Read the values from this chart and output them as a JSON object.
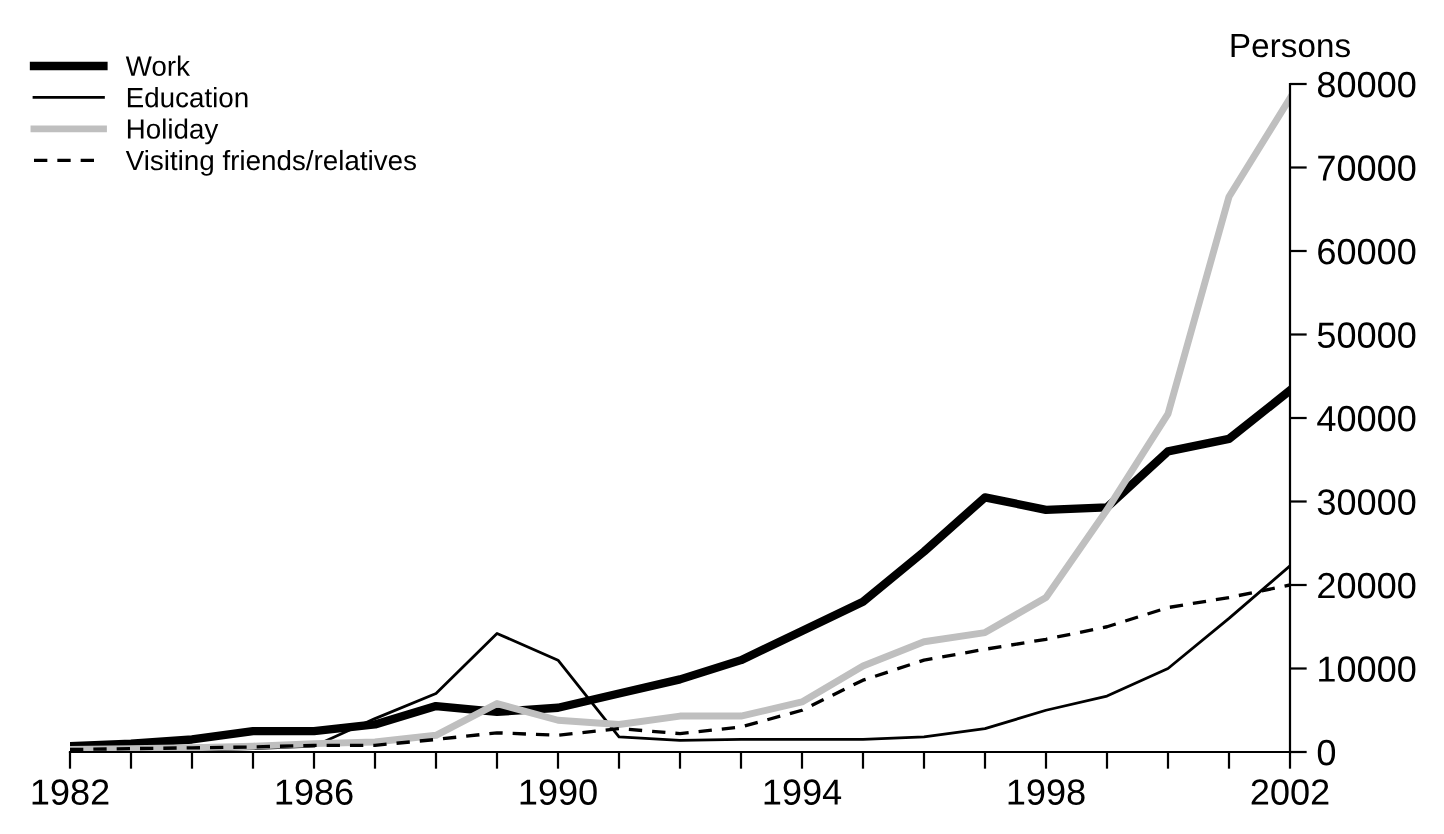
{
  "chart_data": {
    "type": "line",
    "ylabel": "Persons",
    "x": [
      1982,
      1983,
      1984,
      1985,
      1986,
      1987,
      1988,
      1989,
      1990,
      1991,
      1992,
      1993,
      1994,
      1995,
      1996,
      1997,
      1998,
      1999,
      2000,
      2001,
      2002
    ],
    "series": [
      {
        "name": "Work",
        "color": "#000000",
        "line_style": "solid",
        "values": [
          700,
          1000,
          1500,
          2500,
          2500,
          3300,
          5500,
          4800,
          5300,
          7000,
          8700,
          11000,
          14500,
          18000,
          24000,
          30500,
          29000,
          29300,
          36000,
          37500,
          43300
        ]
      },
      {
        "name": "Education",
        "color": "#000000",
        "line_style": "solid",
        "values": [
          200,
          200,
          200,
          400,
          700,
          4000,
          7000,
          14200,
          11000,
          1800,
          1400,
          1500,
          1500,
          1500,
          1800,
          2800,
          5000,
          6700,
          10000,
          16000,
          22300
        ]
      },
      {
        "name": "Holiday",
        "color": "#bfbfbf",
        "line_style": "solid",
        "values": [
          300,
          400,
          500,
          700,
          1000,
          1200,
          2000,
          5800,
          3800,
          3300,
          4300,
          4300,
          6000,
          10300,
          13200,
          14300,
          18500,
          29000,
          40500,
          66500,
          78300
        ]
      },
      {
        "name": "Visiting friends/relatives",
        "color": "#000000",
        "line_style": "dashed",
        "values": [
          300,
          400,
          500,
          600,
          800,
          800,
          1500,
          2300,
          2000,
          2800,
          2200,
          3000,
          5000,
          8600,
          11000,
          12300,
          13500,
          15000,
          17300,
          18500,
          20000
        ]
      }
    ],
    "xlim": [
      1982,
      2002
    ],
    "xticks": [
      1982,
      {
        "value": 1983,
        "label": null
      },
      {
        "value": 1984,
        "label": null
      },
      {
        "value": 1985,
        "label": null
      },
      1986,
      {
        "value": 1987,
        "label": null
      },
      {
        "value": 1988,
        "label": null
      },
      {
        "value": 1989,
        "label": null
      },
      1990,
      {
        "value": 1991,
        "label": null
      },
      {
        "value": 1992,
        "label": null
      },
      {
        "value": 1993,
        "label": null
      },
      1994,
      {
        "value": 1995,
        "label": null
      },
      {
        "value": 1996,
        "label": null
      },
      {
        "value": 1997,
        "label": null
      },
      1998,
      {
        "value": 1999,
        "label": null
      },
      {
        "value": 2000,
        "label": null
      },
      {
        "value": 2001,
        "label": null
      },
      2002
    ],
    "ylim": [
      0,
      80000
    ],
    "yticks": [
      0,
      10000,
      20000,
      30000,
      40000,
      50000,
      60000,
      70000,
      80000
    ],
    "grid": false,
    "legend": "top left",
    "marker": "none"
  }
}
